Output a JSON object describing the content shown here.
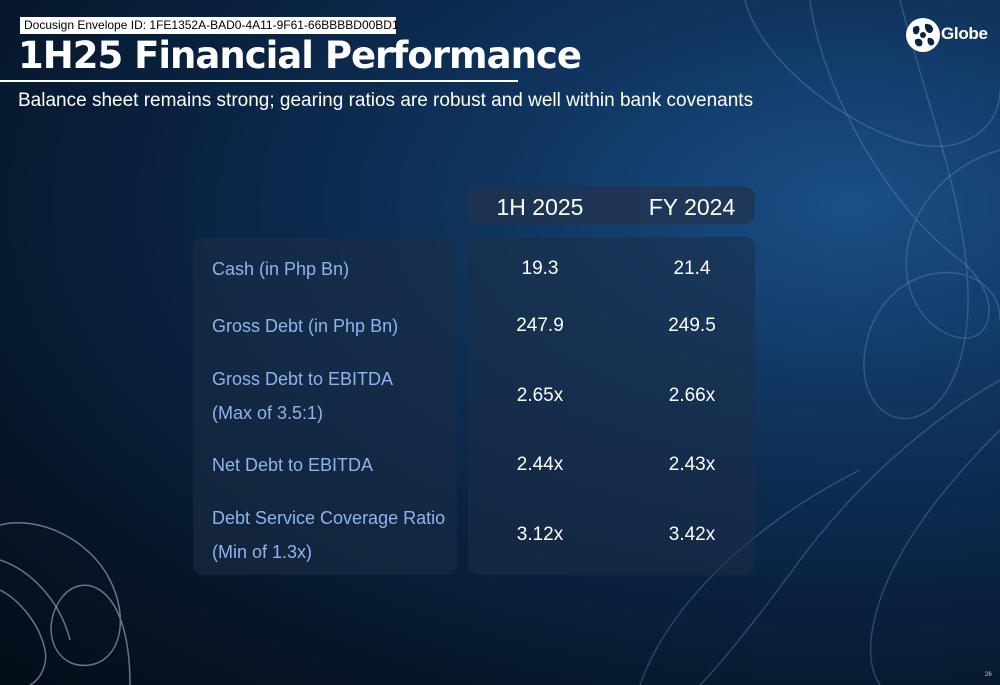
{
  "envelope_id": "Docusign Envelope ID: 1FE1352A-BAD0-4A11-9F61-66BBBBD00BD1",
  "title": "1H25 Financial Performance",
  "subtitle": "Balance sheet remains strong; gearing ratios are robust and well within bank covenants",
  "logo": {
    "text": "Globe",
    "icon": "globe-logo-icon"
  },
  "table": {
    "columns": [
      "1H 2025",
      "FY 2024"
    ],
    "rows": [
      {
        "label": "Cash (in Php Bn)",
        "note": "",
        "v1": "19.3",
        "v2": "21.4"
      },
      {
        "label": "Gross Debt (in Php Bn)",
        "note": "",
        "v1": "247.9",
        "v2": "249.5"
      },
      {
        "label": "Gross Debt to EBITDA",
        "note": "(Max of 3.5:1)",
        "v1": "2.65x",
        "v2": "2.66x"
      },
      {
        "label": "Net Debt to EBITDA",
        "note": "",
        "v1": "2.44x",
        "v2": "2.43x"
      },
      {
        "label": "Debt Service Coverage Ratio",
        "note": "(Min of 1.3x)",
        "v1": "3.12x",
        "v2": "3.42x"
      }
    ]
  },
  "page_number": "26",
  "colors": {
    "label": "#8db4f0",
    "background": "#0a2342",
    "panel": "#1e2d46"
  }
}
